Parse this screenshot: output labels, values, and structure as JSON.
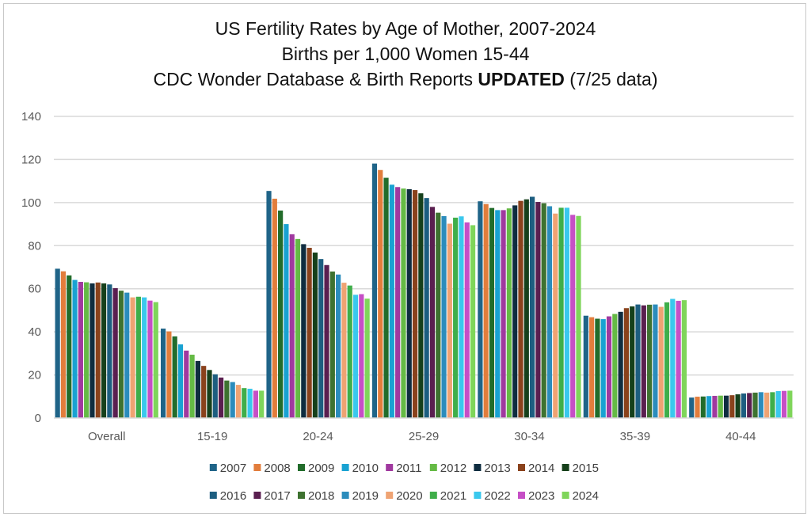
{
  "title_lines": [
    "US Fertility Rates by Age of Mother, 2007-2024",
    "Births per 1,000 Women 15-44"
  ],
  "title_line3": {
    "before": "CDC Wonder Database & Birth Reports ",
    "bold": "UPDATED",
    "after": " (7/25 data)"
  },
  "chart_data": {
    "type": "bar",
    "title": "US Fertility Rates by Age of Mother, 2007-2024 / Births per 1,000 Women 15-44 / CDC Wonder Database & Birth Reports UPDATED (7/25 data)",
    "categories": [
      "Overall",
      "15-19",
      "20-24",
      "25-29",
      "30-34",
      "35-39",
      "40-44"
    ],
    "ylim": [
      0,
      140
    ],
    "yticks": [
      0,
      20,
      40,
      60,
      80,
      100,
      120,
      140
    ],
    "grid": true,
    "legend_position": "bottom",
    "series": [
      {
        "name": "2007",
        "color": "#1f6488",
        "values": [
          69.3,
          41.5,
          105.4,
          118.1,
          100.6,
          47.5,
          9.5
        ]
      },
      {
        "name": "2008",
        "color": "#e27d3c",
        "values": [
          68.1,
          40.2,
          101.8,
          115.1,
          99.3,
          46.8,
          9.9
        ]
      },
      {
        "name": "2009",
        "color": "#226c2b",
        "values": [
          66.2,
          37.9,
          96.3,
          111.5,
          97.5,
          46.1,
          10.0
        ]
      },
      {
        "name": "2010",
        "color": "#19a2d2",
        "values": [
          64.1,
          34.2,
          90.0,
          108.3,
          96.5,
          45.9,
          10.2
        ]
      },
      {
        "name": "2011",
        "color": "#a0399f",
        "values": [
          63.2,
          31.3,
          85.3,
          107.2,
          96.5,
          47.2,
          10.3
        ]
      },
      {
        "name": "2012",
        "color": "#65ba45",
        "values": [
          63.0,
          29.4,
          83.1,
          106.5,
          97.3,
          48.3,
          10.4
        ]
      },
      {
        "name": "2013",
        "color": "#0f2d40",
        "values": [
          62.5,
          26.5,
          80.7,
          106.2,
          98.7,
          49.3,
          10.4
        ]
      },
      {
        "name": "2014",
        "color": "#8a421c",
        "values": [
          62.9,
          24.2,
          79.0,
          105.8,
          100.8,
          51.0,
          10.6
        ]
      },
      {
        "name": "2015",
        "color": "#16401b",
        "values": [
          62.5,
          22.3,
          76.8,
          104.3,
          101.5,
          51.8,
          11.0
        ]
      },
      {
        "name": "2016",
        "color": "#1d5e80",
        "values": [
          62.0,
          20.3,
          73.8,
          102.1,
          102.7,
          52.7,
          11.4
        ]
      },
      {
        "name": "2017",
        "color": "#5a1f50",
        "values": [
          60.3,
          18.8,
          71.0,
          98.0,
          100.3,
          52.3,
          11.6
        ]
      },
      {
        "name": "2018",
        "color": "#3e7230",
        "values": [
          59.1,
          17.4,
          68.0,
          95.3,
          99.7,
          52.6,
          11.8
        ]
      },
      {
        "name": "2019",
        "color": "#2b8cbc",
        "values": [
          58.2,
          16.7,
          66.6,
          93.7,
          98.3,
          52.7,
          12.0
        ]
      },
      {
        "name": "2020",
        "color": "#efa373",
        "values": [
          56.0,
          15.4,
          62.8,
          90.2,
          94.9,
          51.6,
          11.8
        ]
      },
      {
        "name": "2021",
        "color": "#3fae4a",
        "values": [
          56.3,
          13.9,
          61.5,
          93.0,
          97.6,
          53.7,
          12.0
        ]
      },
      {
        "name": "2022",
        "color": "#3ac8ed",
        "values": [
          56.0,
          13.6,
          57.2,
          93.6,
          97.6,
          55.3,
          12.5
        ]
      },
      {
        "name": "2023",
        "color": "#c64fc6",
        "values": [
          54.5,
          12.7,
          57.5,
          90.8,
          94.3,
          54.4,
          12.6
        ]
      },
      {
        "name": "2024",
        "color": "#7fd55a",
        "values": [
          53.8,
          12.7,
          55.4,
          89.5,
          93.8,
          54.7,
          12.7
        ]
      }
    ]
  }
}
